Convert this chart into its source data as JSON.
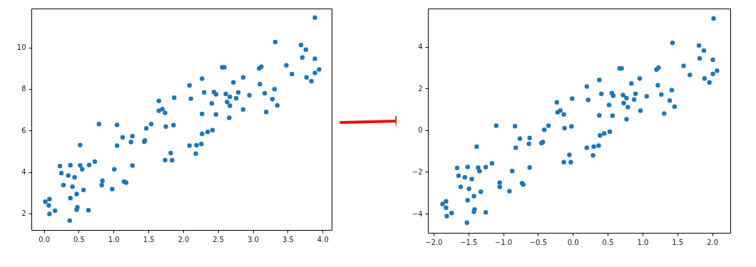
{
  "chart_data": [
    {
      "type": "scatter",
      "marker": "circle",
      "grid": false,
      "xlim": [
        -0.18,
        4.13
      ],
      "ylim": [
        1.21,
        11.87
      ],
      "xticks": [
        {
          "value": 0,
          "label": "0.0"
        },
        0.5,
        {
          "value": 1,
          "label": "1.0"
        },
        1.5,
        {
          "value": 2,
          "label": "2.0"
        },
        2.5,
        {
          "value": 3,
          "label": "3.0"
        },
        3.5,
        {
          "value": 4,
          "label": "4.0"
        }
      ],
      "yticks": [
        2,
        4,
        6,
        8,
        10
      ],
      "series": [
        {
          "color": "#1f77b4",
          "x": [
            0.02,
            0.07,
            0.08,
            0.08,
            0.16,
            0.23,
            0.25,
            0.28,
            0.35,
            0.38,
            0.38,
            0.37,
            0.41,
            0.44,
            0.47,
            0.48,
            0.47,
            0.52,
            0.52,
            0.55,
            0.57,
            0.64,
            0.65,
            0.73,
            0.79,
            0.83,
            0.84,
            0.98,
            1.01,
            1.05,
            1.05,
            1.13,
            1.15,
            1.18,
            1.25,
            1.27,
            1.27,
            1.44,
            1.45,
            1.47,
            1.54,
            1.65,
            1.65,
            1.7,
            1.74,
            1.75,
            1.74,
            1.82,
            1.84,
            1.86,
            1.87,
            2.09,
            2.11,
            2.27,
            2.27,
            2.27,
            2.35,
            2.42,
            2.09,
            2.19,
            2.26,
            2.18,
            2.3,
            2.41,
            2.44,
            2.47,
            2.47,
            2.56,
            2.59,
            2.61,
            2.63,
            2.67,
            2.67,
            2.66,
            2.72,
            2.76,
            2.79,
            2.86,
            2.86,
            2.95,
            3.09,
            3.12,
            3.1,
            3.17,
            3.19,
            3.28,
            3.31,
            3.35,
            3.32,
            3.48,
            3.56,
            3.69,
            3.76,
            3.71,
            3.77,
            3.84,
            3.89,
            3.89,
            3.89,
            3.95
          ],
          "values": [
            2.57,
            2.39,
            2.69,
            1.98,
            2.14,
            4.29,
            3.94,
            3.37,
            3.83,
            4.33,
            2.74,
            1.66,
            3.29,
            3.75,
            2.94,
            2.31,
            2.19,
            5.3,
            4.32,
            4.13,
            3.14,
            2.16,
            4.34,
            4.5,
            6.31,
            3.37,
            3.58,
            3.18,
            4.13,
            6.27,
            5.27,
            5.67,
            3.54,
            3.49,
            5.44,
            5.73,
            4.31,
            5.46,
            5.52,
            6.1,
            6.31,
            7.42,
            6.95,
            7.03,
            6.85,
            6.19,
            4.57,
            4.91,
            4.57,
            6.26,
            7.58,
            8.17,
            7.53,
            8.49,
            6.8,
            5.84,
            5.93,
            6.02,
            5.27,
            5.29,
            5.35,
            4.89,
            7.83,
            7.3,
            7.85,
            7.74,
            6.77,
            9.04,
            9.04,
            7.76,
            7.37,
            7.62,
            7.19,
            6.61,
            8.31,
            7.55,
            7.83,
            8.55,
            7.01,
            7.7,
            8.99,
            9.07,
            8.23,
            7.79,
            6.89,
            7.51,
            7.99,
            7.21,
            10.26,
            9.14,
            8.72,
            10.11,
            9.89,
            9.51,
            8.55,
            8.37,
            11.43,
            9.45,
            8.77,
            8.94
          ]
        }
      ]
    },
    {
      "type": "scatter",
      "marker": "circle",
      "grid": false,
      "xlim": [
        -2.08,
        2.26
      ],
      "ylim": [
        -4.92,
        5.83
      ],
      "xticks": [
        {
          "value": -2,
          "label": "−2.0"
        },
        {
          "value": -1.5,
          "label": "−1.5"
        },
        {
          "value": -1,
          "label": "−1.0"
        },
        {
          "value": -0.5,
          "label": "−0.5"
        },
        {
          "value": 0,
          "label": "0.0"
        },
        0.5,
        {
          "value": 1,
          "label": "1.0"
        },
        1.5,
        {
          "value": 2,
          "label": "2.0"
        }
      ],
      "yticks": [
        {
          "value": -4,
          "label": "−4"
        },
        {
          "value": -2,
          "label": "−2"
        },
        0,
        2,
        4
      ],
      "series": [
        {
          "color": "#1f77b4",
          "x": [
            -1.87,
            -1.82,
            -1.82,
            -1.81,
            -1.74,
            -1.66,
            -1.64,
            -1.61,
            -1.55,
            -1.51,
            -1.49,
            -1.45,
            -1.51,
            -1.52,
            -1.42,
            -1.41,
            -1.42,
            -1.38,
            -1.36,
            -1.34,
            -1.32,
            -1.25,
            -1.25,
            -1.16,
            -1.1,
            -1.05,
            -1.05,
            -0.91,
            -0.87,
            -0.83,
            -0.82,
            -0.76,
            -0.73,
            -0.71,
            -0.62,
            -0.63,
            -0.62,
            -0.45,
            -0.43,
            -0.41,
            -0.35,
            -0.23,
            -0.22,
            -0.18,
            -0.13,
            -0.12,
            -0.13,
            -0.05,
            -0.03,
            -0.02,
            -0.01,
            0.2,
            0.22,
            0.38,
            0.41,
            0.38,
            0.39,
            0.45,
            0.53,
            0.2,
            0.3,
            0.37,
            0.29,
            0.52,
            0.56,
            0.58,
            0.57,
            0.67,
            0.7,
            0.72,
            0.73,
            0.77,
            0.79,
            0.77,
            0.84,
            0.88,
            0.9,
            0.96,
            0.97,
            1.06,
            1.2,
            1.23,
            1.22,
            1.27,
            1.31,
            1.39,
            1.42,
            1.46,
            1.43,
            1.59,
            1.68,
            1.81,
            1.88,
            1.82,
            1.89,
            1.96,
            2.02,
            2.01,
            2.01,
            2.07
          ],
          "values": [
            -3.54,
            -3.41,
            -3.72,
            -4.12,
            -3.97,
            -1.81,
            -2.18,
            -2.72,
            -2.26,
            -1.76,
            -2.81,
            -2.34,
            -3.36,
            -4.43,
            -3.16,
            -3.8,
            -3.91,
            -0.79,
            -1.8,
            -1.96,
            -2.95,
            -3.94,
            -1.77,
            -1.59,
            0.22,
            -2.51,
            -2.72,
            -2.92,
            -1.96,
            0.19,
            -0.84,
            -0.41,
            -2.54,
            -2.61,
            -0.37,
            -0.65,
            -1.79,
            -0.62,
            -0.57,
            0.02,
            0.22,
            1.33,
            0.86,
            0.94,
            0.75,
            0.1,
            -1.53,
            -1.18,
            -1.53,
            0.18,
            1.51,
            2.09,
            1.45,
            2.41,
            1.74,
            0.71,
            -0.25,
            -0.16,
            -0.07,
            -0.84,
            -0.79,
            -0.74,
            -1.21,
            1.21,
            1.78,
            1.65,
            0.69,
            2.96,
            2.96,
            1.68,
            1.3,
            1.54,
            1.1,
            0.52,
            2.24,
            1.47,
            1.74,
            2.48,
            0.93,
            1.62,
            2.9,
            3.0,
            2.15,
            1.71,
            0.8,
            1.42,
            1.92,
            1.13,
            4.18,
            3.08,
            2.65,
            4.06,
            3.82,
            3.44,
            2.48,
            2.29,
            5.35,
            3.37,
            2.7,
            2.85
          ]
        }
      ]
    }
  ]
}
